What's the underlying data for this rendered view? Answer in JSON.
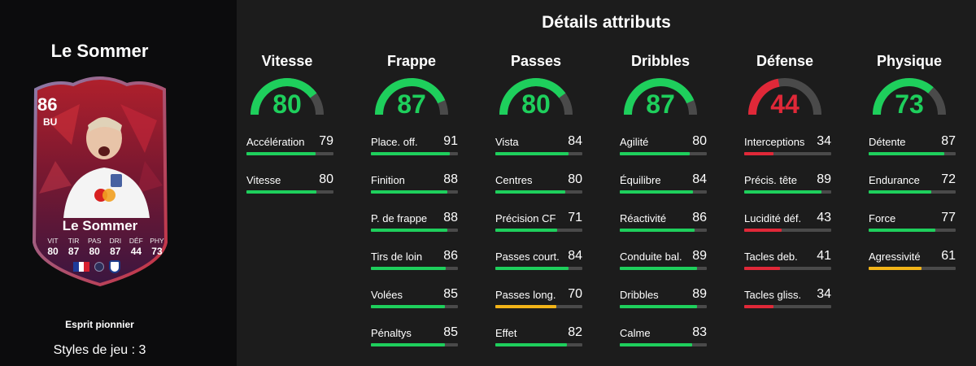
{
  "player": {
    "name": "Le Sommer",
    "card": {
      "rating": "86",
      "position": "BU",
      "name": "Le Sommer",
      "stats": [
        {
          "label": "VIT",
          "value": "80"
        },
        {
          "label": "TIR",
          "value": "87"
        },
        {
          "label": "PAS",
          "value": "80"
        },
        {
          "label": "DRI",
          "value": "87"
        },
        {
          "label": "DÉF",
          "value": "44"
        },
        {
          "label": "PHY",
          "value": "73"
        }
      ]
    },
    "variant": "Esprit pionnier",
    "playstyles": "Styles de jeu : 3"
  },
  "page_title": "Détails attributs",
  "colors": {
    "green": "#1ecf5c",
    "yellow": "#f2b418",
    "red": "#e02838",
    "track": "#4a4a4a"
  },
  "categories": [
    {
      "title": "Vitesse",
      "value": 80,
      "color": "green",
      "stats": [
        {
          "label": "Accélération",
          "value": 79,
          "color": "green"
        },
        {
          "label": "Vitesse",
          "value": 80,
          "color": "green"
        }
      ]
    },
    {
      "title": "Frappe",
      "value": 87,
      "color": "green",
      "stats": [
        {
          "label": "Place. off.",
          "value": 91,
          "color": "green"
        },
        {
          "label": "Finition",
          "value": 88,
          "color": "green"
        },
        {
          "label": "P. de frappe",
          "value": 88,
          "color": "green"
        },
        {
          "label": "Tirs de loin",
          "value": 86,
          "color": "green"
        },
        {
          "label": "Volées",
          "value": 85,
          "color": "green"
        },
        {
          "label": "Pénaltys",
          "value": 85,
          "color": "green"
        }
      ]
    },
    {
      "title": "Passes",
      "value": 80,
      "color": "green",
      "stats": [
        {
          "label": "Vista",
          "value": 84,
          "color": "green"
        },
        {
          "label": "Centres",
          "value": 80,
          "color": "green"
        },
        {
          "label": "Précision CF",
          "value": 71,
          "color": "green"
        },
        {
          "label": "Passes court.",
          "value": 84,
          "color": "green"
        },
        {
          "label": "Passes long.",
          "value": 70,
          "color": "yellow"
        },
        {
          "label": "Effet",
          "value": 82,
          "color": "green"
        }
      ]
    },
    {
      "title": "Dribbles",
      "value": 87,
      "color": "green",
      "stats": [
        {
          "label": "Agilité",
          "value": 80,
          "color": "green"
        },
        {
          "label": "Équilibre",
          "value": 84,
          "color": "green"
        },
        {
          "label": "Réactivité",
          "value": 86,
          "color": "green"
        },
        {
          "label": "Conduite bal.",
          "value": 89,
          "color": "green"
        },
        {
          "label": "Dribbles",
          "value": 89,
          "color": "green"
        },
        {
          "label": "Calme",
          "value": 83,
          "color": "green"
        }
      ]
    },
    {
      "title": "Défense",
      "value": 44,
      "color": "red",
      "stats": [
        {
          "label": "Interceptions",
          "value": 34,
          "color": "red"
        },
        {
          "label": "Précis. tête",
          "value": 89,
          "color": "green"
        },
        {
          "label": "Lucidité déf.",
          "value": 43,
          "color": "red"
        },
        {
          "label": "Tacles deb.",
          "value": 41,
          "color": "red"
        },
        {
          "label": "Tacles gliss.",
          "value": 34,
          "color": "red"
        }
      ]
    },
    {
      "title": "Physique",
      "value": 73,
      "color": "green",
      "stats": [
        {
          "label": "Détente",
          "value": 87,
          "color": "green"
        },
        {
          "label": "Endurance",
          "value": 72,
          "color": "green"
        },
        {
          "label": "Force",
          "value": 77,
          "color": "green"
        },
        {
          "label": "Agressivité",
          "value": 61,
          "color": "yellow"
        }
      ]
    }
  ]
}
